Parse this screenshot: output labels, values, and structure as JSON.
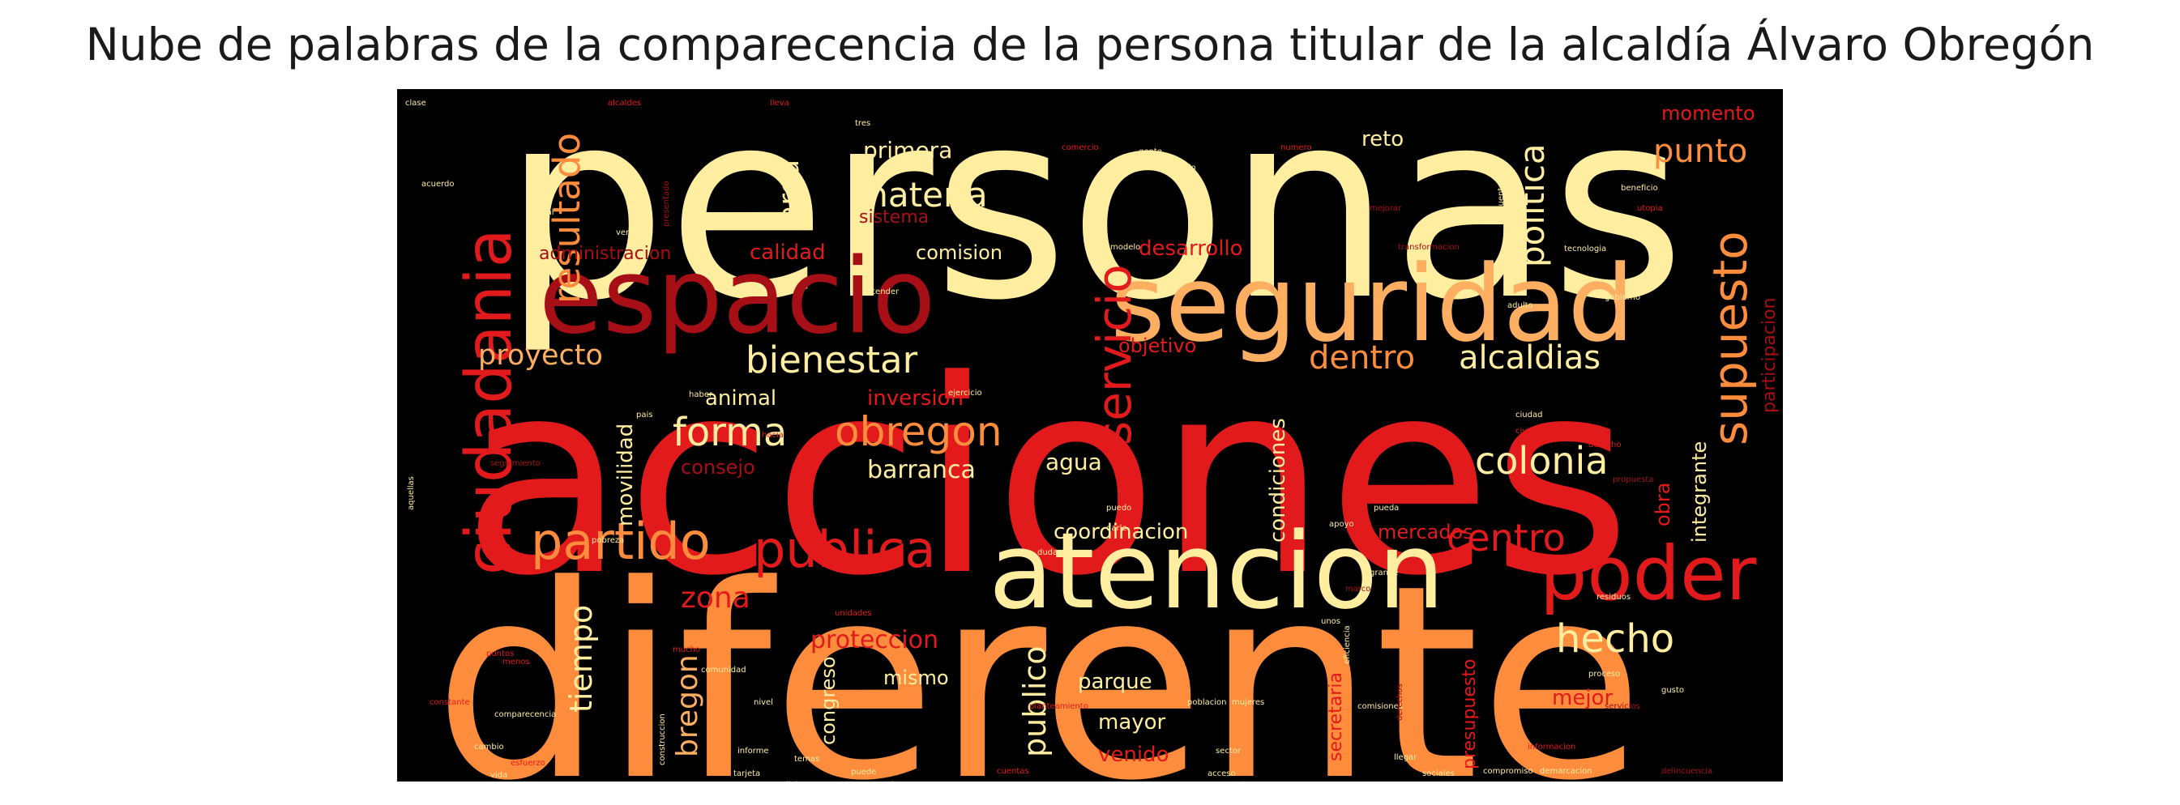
{
  "title": "Nube de palabras de la comparecencia de la persona titular de la alcaldía Álvaro Obregón",
  "palette": {
    "background": "#000000",
    "hot_red": "#d7191c",
    "crimson": "#a50f15",
    "orange": "#fd8d3c",
    "amber": "#feb24c",
    "cream": "#ffeda0",
    "wine": "#7f0000"
  },
  "words": [
    {
      "text": "personas",
      "color": "#ffeda0"
    },
    {
      "text": "acciones",
      "color": "#e31a1c"
    },
    {
      "text": "diferente",
      "color": "#fd8d3c"
    },
    {
      "text": "seguridad",
      "color": "#fdae61"
    },
    {
      "text": "espacio",
      "color": "#a50f15"
    },
    {
      "text": "atencion",
      "color": "#ffeda0"
    },
    {
      "text": "ciudadania",
      "color": "#e31a1c"
    },
    {
      "text": "poder",
      "color": "#e31a1c"
    },
    {
      "text": "partido",
      "color": "#fd8d3c"
    },
    {
      "text": "publica",
      "color": "#e31a1c"
    },
    {
      "text": "servicio",
      "color": "#e31a1c"
    },
    {
      "text": "supuesto",
      "color": "#fd8d3c"
    },
    {
      "text": "resultado",
      "color": "#fd8d3c"
    },
    {
      "text": "politica",
      "color": "#ffeda0"
    },
    {
      "text": "bienestar",
      "color": "#ffeda0"
    },
    {
      "text": "materia",
      "color": "#ffeda0"
    },
    {
      "text": "obregon",
      "color": "#fd8d3c"
    },
    {
      "text": "forma",
      "color": "#ffeda0"
    },
    {
      "text": "hecho",
      "color": "#ffeda0"
    },
    {
      "text": "centro",
      "color": "#e31a1c"
    },
    {
      "text": "colonia",
      "color": "#ffeda0"
    },
    {
      "text": "proyecto",
      "color": "#fdae61"
    },
    {
      "text": "dentro",
      "color": "#fd8d3c"
    },
    {
      "text": "alcaldias",
      "color": "#ffeda0"
    },
    {
      "text": "punto",
      "color": "#fd8d3c"
    },
    {
      "text": "area",
      "color": "#ffeda0"
    },
    {
      "text": "primera",
      "color": "#ffeda0"
    },
    {
      "text": "reto",
      "color": "#ffeda0"
    },
    {
      "text": "momento",
      "color": "#e31a1c"
    },
    {
      "text": "tiempo",
      "color": "#ffeda0"
    },
    {
      "text": "bregon",
      "color": "#fdae61"
    },
    {
      "text": "zona",
      "color": "#e31a1c"
    },
    {
      "text": "publico",
      "color": "#ffeda0"
    },
    {
      "text": "proteccion",
      "color": "#e31a1c"
    },
    {
      "text": "barranca",
      "color": "#ffeda0"
    },
    {
      "text": "inversion",
      "color": "#e31a1c"
    },
    {
      "text": "animal",
      "color": "#ffeda0"
    },
    {
      "text": "movilidad",
      "color": "#ffeda0"
    },
    {
      "text": "consejo",
      "color": "#a50f15"
    },
    {
      "text": "agua",
      "color": "#ffeda0"
    },
    {
      "text": "coordinacion",
      "color": "#ffeda0"
    },
    {
      "text": "mercados",
      "color": "#e31a1c"
    },
    {
      "text": "condiciones",
      "color": "#ffeda0"
    },
    {
      "text": "calidad",
      "color": "#e31a1c"
    },
    {
      "text": "comision",
      "color": "#ffeda0"
    },
    {
      "text": "desarrollo",
      "color": "#e31a1c"
    },
    {
      "text": "administracion",
      "color": "#a50f15"
    },
    {
      "text": "sistema",
      "color": "#a50f15"
    },
    {
      "text": "objetivo",
      "color": "#e31a1c"
    },
    {
      "text": "mismo",
      "color": "#ffeda0"
    },
    {
      "text": "parque",
      "color": "#ffeda0"
    },
    {
      "text": "mayor",
      "color": "#ffeda0"
    },
    {
      "text": "venido",
      "color": "#e31a1c"
    },
    {
      "text": "mejor",
      "color": "#e31a1c"
    },
    {
      "text": "congreso",
      "color": "#ffeda0"
    },
    {
      "text": "presupuesto",
      "color": "#e31a1c"
    },
    {
      "text": "secretaria",
      "color": "#e31a1c"
    },
    {
      "text": "obra",
      "color": "#e31a1c"
    },
    {
      "text": "integrante",
      "color": "#ffeda0"
    },
    {
      "text": "participacion",
      "color": "#a50f15"
    },
    {
      "text": "clase",
      "color": "#ffeda0"
    },
    {
      "text": "alcaldes",
      "color": "#e31a1c"
    },
    {
      "text": "lleva",
      "color": "#e31a1c"
    },
    {
      "text": "acuerdo",
      "color": "#ffeda0"
    },
    {
      "text": "social",
      "color": "#ffeda0"
    },
    {
      "text": "presentado",
      "color": "#a50f15"
    },
    {
      "text": "tres",
      "color": "#ffeda0"
    },
    {
      "text": "comercio",
      "color": "#e31a1c"
    },
    {
      "text": "gente",
      "color": "#ffeda0"
    },
    {
      "text": "realizado",
      "color": "#ffeda0"
    },
    {
      "text": "numero",
      "color": "#e31a1c"
    },
    {
      "text": "mejorar",
      "color": "#a50f15"
    },
    {
      "text": "cuenta",
      "color": "#ffeda0"
    },
    {
      "text": "beneficio",
      "color": "#ffeda0"
    },
    {
      "text": "utopia",
      "color": "#e31a1c"
    },
    {
      "text": "verde",
      "color": "#ffeda0"
    },
    {
      "text": "modelo",
      "color": "#ffeda0"
    },
    {
      "text": "transformacion",
      "color": "#a50f15"
    },
    {
      "text": "tecnologia",
      "color": "#ffeda0"
    },
    {
      "text": "adulto",
      "color": "#ffeda0"
    },
    {
      "text": "atender",
      "color": "#ffeda0"
    },
    {
      "text": "haber",
      "color": "#ffeda0"
    },
    {
      "text": "pais",
      "color": "#ffeda0"
    },
    {
      "text": "ejercicio",
      "color": "#ffeda0"
    },
    {
      "text": "gobierno",
      "color": "#ffeda0"
    },
    {
      "text": "hacia",
      "color": "#e31a1c"
    },
    {
      "text": "civil",
      "color": "#e31a1c"
    },
    {
      "text": "derecho",
      "color": "#e31a1c"
    },
    {
      "text": "propuesta",
      "color": "#a50f15"
    },
    {
      "text": "seguimiento",
      "color": "#a50f15"
    },
    {
      "text": "aquellas",
      "color": "#ffeda0"
    },
    {
      "text": "puedo",
      "color": "#ffeda0"
    },
    {
      "text": "darle",
      "color": "#ffeda0"
    },
    {
      "text": "apoyo",
      "color": "#ffeda0"
    },
    {
      "text": "pueda",
      "color": "#ffeda0"
    },
    {
      "text": "duda",
      "color": "#ffeda0"
    },
    {
      "text": "grande",
      "color": "#ffeda0"
    },
    {
      "text": "pobreza",
      "color": "#ffeda0"
    },
    {
      "text": "unidades",
      "color": "#e31a1c"
    },
    {
      "text": "mucho",
      "color": "#e31a1c"
    },
    {
      "text": "residuos",
      "color": "#ffeda0"
    },
    {
      "text": "unos",
      "color": "#ffeda0"
    },
    {
      "text": "puntos",
      "color": "#e31a1c"
    },
    {
      "text": "comunidad",
      "color": "#ffeda0"
    },
    {
      "text": "constante",
      "color": "#e31a1c"
    },
    {
      "text": "comparecencia",
      "color": "#ffeda0"
    },
    {
      "text": "nivel",
      "color": "#ffeda0"
    },
    {
      "text": "planteamiento",
      "color": "#e31a1c"
    },
    {
      "text": "poblacion",
      "color": "#ffeda0"
    },
    {
      "text": "mujeres",
      "color": "#ffeda0"
    },
    {
      "text": "comisiones",
      "color": "#ffeda0"
    },
    {
      "text": "gusto",
      "color": "#ffeda0"
    },
    {
      "text": "menos",
      "color": "#e31a1c"
    },
    {
      "text": "cambio",
      "color": "#ffeda0"
    },
    {
      "text": "esfuerzo",
      "color": "#e31a1c"
    },
    {
      "text": "vida",
      "color": "#ffeda0"
    },
    {
      "text": "construccion",
      "color": "#ffeda0"
    },
    {
      "text": "informe",
      "color": "#ffeda0"
    },
    {
      "text": "tarjeta",
      "color": "#ffeda0"
    },
    {
      "text": "rendicion",
      "color": "#ffeda0"
    },
    {
      "text": "temas",
      "color": "#ffeda0"
    },
    {
      "text": "puede",
      "color": "#ffeda0"
    },
    {
      "text": "percepcion",
      "color": "#ffeda0"
    },
    {
      "text": "cuentas",
      "color": "#e31a1c"
    },
    {
      "text": "sector",
      "color": "#ffeda0"
    },
    {
      "text": "acceso",
      "color": "#ffeda0"
    },
    {
      "text": "calle",
      "color": "#e31a1c"
    },
    {
      "text": "llegar",
      "color": "#ffeda0"
    },
    {
      "text": "sociales",
      "color": "#ffeda0"
    },
    {
      "text": "compromiso",
      "color": "#ffeda0"
    },
    {
      "text": "informacion",
      "color": "#e31a1c"
    },
    {
      "text": "demarcacion",
      "color": "#ffeda0"
    },
    {
      "text": "delincuencia",
      "color": "#a50f15"
    },
    {
      "text": "derechos",
      "color": "#a50f15"
    },
    {
      "text": "eficiencia",
      "color": "#ffeda0"
    },
    {
      "text": "marco",
      "color": "#a50f15"
    },
    {
      "text": "proceso",
      "color": "#ffeda0"
    },
    {
      "text": "servicios",
      "color": "#a50f15"
    },
    {
      "text": "ciudad",
      "color": "#ffeda0"
    }
  ]
}
